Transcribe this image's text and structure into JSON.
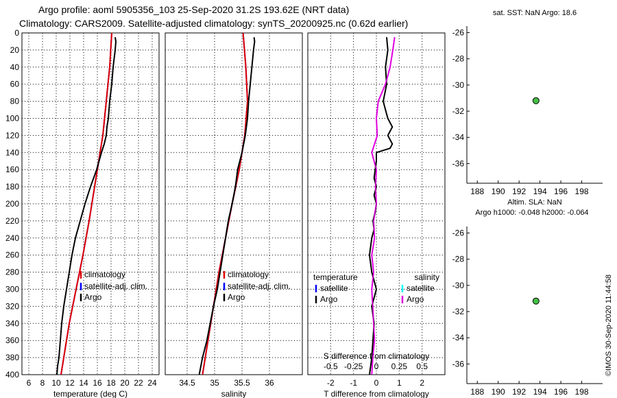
{
  "header": {
    "line1": "Argo profile: aoml 5905356_103 25-Sep-2020 31.2S 193.62E (NRT data)",
    "line2": "Climatology: CARS2009. Satellite-adjusted climatology: synTS_20200925.nc (0.62d earlier)"
  },
  "credit": "©IMOS 30-Sep-2020 11:44:58",
  "colors": {
    "climatology": "#e00000",
    "satellite": "#0000ff",
    "argo": "#000000",
    "sal_satellite": "#00ffff",
    "sal_argo": "#e000e0",
    "marker": "#44c044",
    "grid": "#000000"
  },
  "chart_data": [
    {
      "type": "line",
      "id": "temperature",
      "xlabel": "temperature (deg C)",
      "ylabel": "",
      "xlim": [
        5,
        25
      ],
      "ylim": [
        400,
        0
      ],
      "xticks": [
        "6",
        "8",
        "10",
        "12",
        "14",
        "16",
        "18",
        "20",
        "22",
        "24"
      ],
      "xtick_values": [
        6,
        8,
        10,
        12,
        14,
        16,
        18,
        20,
        22,
        24
      ],
      "yticks": [
        "0",
        "20",
        "40",
        "60",
        "80",
        "100",
        "120",
        "140",
        "160",
        "180",
        "200",
        "220",
        "240",
        "260",
        "280",
        "300",
        "320",
        "340",
        "360",
        "380",
        "400"
      ],
      "ytick_values": [
        0,
        20,
        40,
        60,
        80,
        100,
        120,
        140,
        160,
        180,
        200,
        220,
        240,
        260,
        280,
        300,
        320,
        340,
        360,
        380,
        400
      ],
      "legend": [
        "climatology",
        "satellite-adj. clim.",
        "Argo"
      ],
      "series": [
        {
          "name": "climatology",
          "depth": [
            0,
            40,
            80,
            120,
            140,
            180,
            220,
            260,
            300,
            340,
            380,
            400
          ],
          "values": [
            18.1,
            17.8,
            17.3,
            16.8,
            16.4,
            15.6,
            14.8,
            13.9,
            12.9,
            11.9,
            11.1,
            10.7
          ]
        },
        {
          "name": "satellite-adj. clim.",
          "depth": [
            0,
            40,
            80,
            120,
            140,
            180,
            220,
            260,
            300,
            340,
            380,
            400
          ],
          "values": [
            18.1,
            17.8,
            17.3,
            16.8,
            16.4,
            15.6,
            14.8,
            13.9,
            12.9,
            11.9,
            11.1,
            10.7
          ]
        },
        {
          "name": "Argo",
          "depth": [
            5,
            10,
            20,
            40,
            60,
            80,
            100,
            110,
            120,
            130,
            140,
            160,
            180,
            200,
            220,
            240,
            260,
            280,
            300,
            320,
            340,
            360,
            380,
            390,
            400
          ],
          "values": [
            18.6,
            18.7,
            18.6,
            18.3,
            18.1,
            17.8,
            17.6,
            17.4,
            17.3,
            17.0,
            16.6,
            15.9,
            15.0,
            14.2,
            13.5,
            12.8,
            12.3,
            11.9,
            11.5,
            11.1,
            10.8,
            10.6,
            10.4,
            10.2,
            10.1
          ]
        }
      ]
    },
    {
      "type": "line",
      "id": "salinity",
      "xlabel": "salinity",
      "ylabel": "",
      "xlim": [
        34.1,
        36.6
      ],
      "ylim": [
        400,
        0
      ],
      "xticks": [
        "34.5",
        "35",
        "35.5",
        "36"
      ],
      "xtick_values": [
        34.5,
        35,
        35.5,
        36
      ],
      "legend": [
        "climatology",
        "satellite-adj. clim.",
        "Argo"
      ],
      "series": [
        {
          "name": "climatology",
          "depth": [
            0,
            40,
            80,
            120,
            160,
            200,
            240,
            280,
            320,
            360,
            400
          ],
          "values": [
            35.52,
            35.57,
            35.6,
            35.55,
            35.45,
            35.32,
            35.2,
            35.08,
            34.98,
            34.88,
            34.78
          ]
        },
        {
          "name": "satellite-adj. clim.",
          "depth": [
            0,
            40,
            80,
            120,
            160,
            200,
            240,
            280,
            320,
            360,
            400
          ],
          "values": [
            35.52,
            35.57,
            35.6,
            35.55,
            35.45,
            35.32,
            35.2,
            35.08,
            34.98,
            34.88,
            34.78
          ]
        },
        {
          "name": "Argo",
          "depth": [
            5,
            10,
            20,
            40,
            60,
            80,
            100,
            120,
            140,
            160,
            180,
            200,
            220,
            240,
            260,
            280,
            300,
            320,
            340,
            360,
            380,
            400
          ],
          "values": [
            35.72,
            35.73,
            35.71,
            35.68,
            35.65,
            35.62,
            35.6,
            35.56,
            35.5,
            35.42,
            35.38,
            35.32,
            35.25,
            35.2,
            35.15,
            35.1,
            35.05,
            34.98,
            34.92,
            34.86,
            34.78,
            34.72
          ]
        }
      ]
    },
    {
      "type": "line",
      "id": "difference",
      "xlabel": "T difference from climatology",
      "ylabel": "",
      "top_label": "S difference from climatology",
      "xlim": [
        -3,
        3
      ],
      "ylim": [
        400,
        0
      ],
      "xticks": [
        "-2",
        "-1",
        "0",
        "1",
        "2"
      ],
      "xtick_values": [
        -2,
        -1,
        0,
        1,
        2
      ],
      "top_ticks": [
        "-0.5",
        "-0.25",
        "0",
        "0.25",
        "0.5"
      ],
      "top_tick_values": [
        -0.5,
        -0.25,
        0,
        0.25,
        0.5
      ],
      "legend_temperature": {
        "title": "temperature",
        "items": [
          "satellite",
          "Argo"
        ]
      },
      "legend_salinity": {
        "title": "salinity",
        "items": [
          "satellite",
          "Argo"
        ]
      },
      "series": [
        {
          "name": "temperature Argo",
          "depth": [
            5,
            20,
            40,
            60,
            80,
            90,
            100,
            110,
            120,
            130,
            135,
            140,
            150,
            160,
            170,
            180,
            190,
            200,
            210,
            220,
            230,
            240,
            260,
            280,
            300,
            320,
            340,
            360,
            380,
            400
          ],
          "values": [
            0.45,
            0.5,
            0.4,
            0.45,
            0.3,
            0.4,
            0.5,
            0.7,
            0.5,
            0.7,
            0.6,
            0.0,
            0.0,
            -0.05,
            -0.1,
            0.0,
            -0.1,
            0.0,
            -0.05,
            -0.15,
            -0.1,
            -0.2,
            -0.3,
            -0.2,
            0.0,
            -0.2,
            -0.1,
            -0.15,
            -0.2,
            -0.3
          ]
        },
        {
          "name": "salinity Argo",
          "depth": [
            5,
            20,
            40,
            60,
            80,
            100,
            120,
            140,
            160,
            180,
            200,
            220,
            240,
            260,
            280,
            300,
            320,
            340,
            360,
            380,
            400
          ],
          "values": [
            0.2,
            0.18,
            0.15,
            0.1,
            0.02,
            0.0,
            0.01,
            -0.05,
            0.0,
            -0.01,
            0.0,
            -0.03,
            -0.02,
            -0.05,
            -0.03,
            -0.05,
            -0.04,
            -0.03,
            -0.02,
            -0.04,
            -0.05
          ]
        }
      ]
    },
    {
      "type": "scatter",
      "id": "map-sst",
      "title": "sat. SST: NaN Argo: 18.6",
      "xlim": [
        187,
        200
      ],
      "ylim": [
        -37.5,
        -25.5
      ],
      "xticks": [
        "188",
        "190",
        "192",
        "194",
        "196",
        "198"
      ],
      "xtick_values": [
        188,
        190,
        192,
        194,
        196,
        198
      ],
      "yticks": [
        "-26",
        "-28",
        "-30",
        "-32",
        "-34",
        "-36"
      ],
      "ytick_values": [
        -26,
        -28,
        -30,
        -32,
        -34,
        -36
      ],
      "points": [
        {
          "x": 193.62,
          "y": -31.2
        }
      ]
    },
    {
      "type": "scatter",
      "id": "map-sla",
      "title": "Altim. SLA: NaN",
      "subtitle": "Argo h1000: -0.048 h2000: -0.064",
      "xlim": [
        187,
        200
      ],
      "ylim": [
        -37.5,
        -25.5
      ],
      "xticks": [
        "188",
        "190",
        "192",
        "194",
        "196",
        "198"
      ],
      "xtick_values": [
        188,
        190,
        192,
        194,
        196,
        198
      ],
      "yticks": [
        "-26",
        "-28",
        "-30",
        "-32",
        "-34",
        "-36"
      ],
      "ytick_values": [
        -26,
        -28,
        -30,
        -32,
        -34,
        -36
      ],
      "points": [
        {
          "x": 193.62,
          "y": -31.2
        }
      ]
    }
  ]
}
